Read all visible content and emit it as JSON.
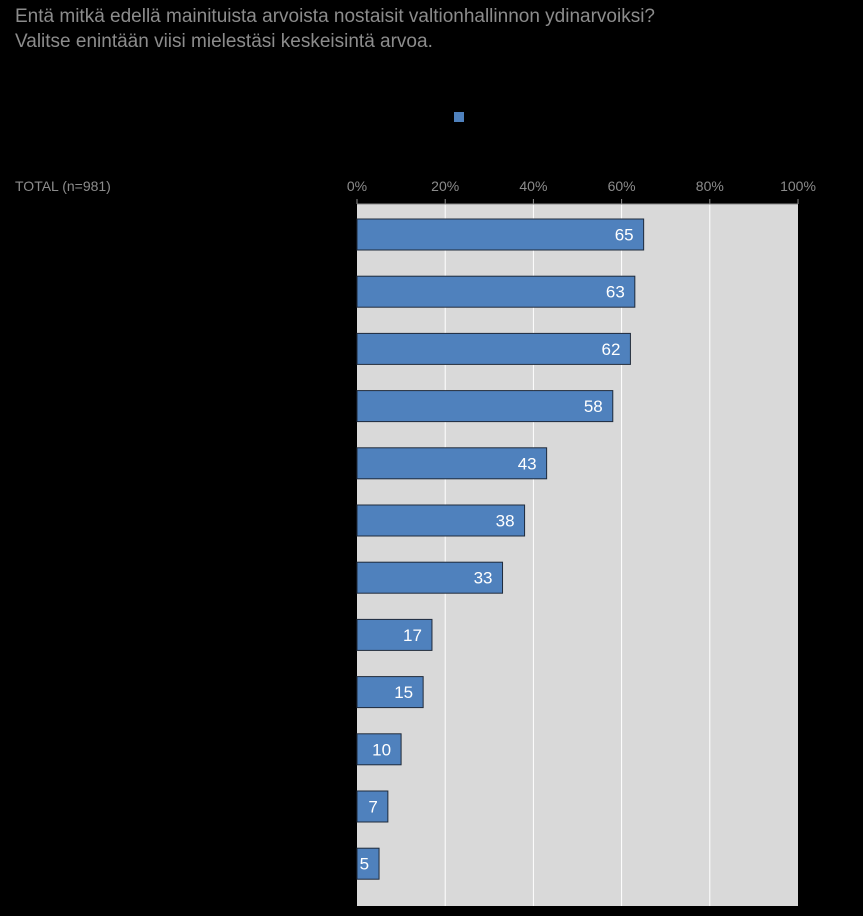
{
  "header": {
    "title_line1": "Entä mitkä edellä mainituista arvoista nostaisit valtionhallinnon  ydinarvoiksi?",
    "title_line2": "Valitse enintään viisi mielestäsi keskeisintä arvoa."
  },
  "base_label": "TOTAL  (n=981)",
  "colors": {
    "background": "#000000",
    "plot_area": "#d9d9d9",
    "bar_fill": "#4f81bd",
    "bar_stroke": "#1f2a3a",
    "text": "#8c8c8c",
    "gridline": "#ffffff",
    "bar_label": "#ffffff"
  },
  "chart_data": {
    "type": "bar",
    "orientation": "horizontal",
    "title": "Entä mitkä edellä mainituista arvoista nostaisit valtionhallinnon  ydinarvoiksi? Valitse enintään viisi mielestäsi keskeisintä arvoa.",
    "categories": [
      "",
      "",
      "",
      "",
      "",
      "",
      "",
      "",
      "",
      "",
      "",
      ""
    ],
    "series": [
      {
        "values": [
          65,
          63,
          62,
          58,
          43,
          38,
          33,
          17,
          15,
          10,
          7,
          5
        ]
      }
    ],
    "data_labels": [
      "65",
      "63",
      "62",
      "58",
      "43",
      "38",
      "33",
      "17",
      "15",
      "10",
      "7",
      "5"
    ],
    "xlim": [
      0,
      100
    ],
    "x_ticks": [
      0,
      20,
      40,
      60,
      80,
      100
    ],
    "x_tick_labels": [
      "0%",
      "20%",
      "40%",
      "60%",
      "80%",
      "100%"
    ],
    "axis_position": "top",
    "grid": true,
    "legend": "top-center"
  }
}
